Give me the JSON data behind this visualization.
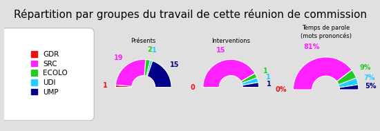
{
  "title": "Répartition par groupes du travail de cette réunion de commission",
  "groups": [
    "GDR",
    "SRC",
    "ECOLO",
    "UDI",
    "UMP"
  ],
  "colors": [
    "#ee1111",
    "#ff22ff",
    "#22cc22",
    "#22ccff",
    "#000088"
  ],
  "presentes": [
    1,
    19,
    2,
    1,
    15
  ],
  "interventions": [
    0,
    15,
    1,
    1,
    1
  ],
  "temps_parole_pct": [
    0,
    81,
    9,
    7,
    5
  ],
  "chart_titles": [
    "Présents",
    "Interventions",
    "Temps de parole\n(mots prononcés)"
  ],
  "bg_color": "#e0e0e0",
  "legend_bg": "#ffffff",
  "title_fontsize": 11,
  "subtitle_fontsize": 7
}
